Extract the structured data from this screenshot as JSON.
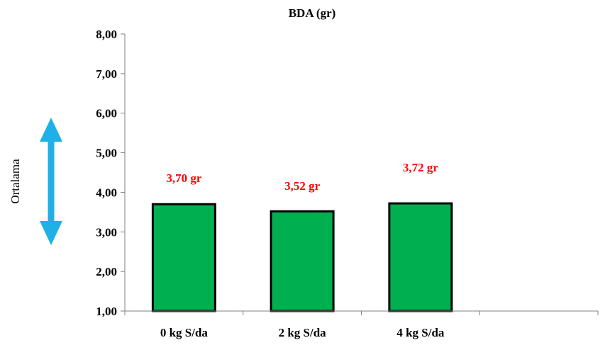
{
  "chart_data": {
    "type": "bar",
    "title": "BDA (gr)",
    "xlabel": "",
    "ylabel": "Ortalama",
    "categories": [
      "0 kg S/da",
      "2 kg S/da",
      "4 kg S/da"
    ],
    "series": [
      {
        "values": [
          3.7,
          3.52,
          3.72
        ]
      }
    ],
    "data_labels": [
      "3,70 gr",
      "3,52 gr",
      "3,72 gr"
    ],
    "ylim": [
      1,
      8
    ],
    "y_ticks": [
      "1,00",
      "2,00",
      "3,00",
      "4,00",
      "5,00",
      "6,00",
      "7,00",
      "8,00"
    ],
    "grid": false,
    "legend": "none",
    "colors": {
      "bar_fill": "#00b050",
      "bar_stroke": "#000000",
      "data_label": "#ff0000",
      "arrow": "#1fb0e8",
      "axis": "#808080"
    },
    "annotation_icon": "double-headed-vertical-arrow-icon"
  }
}
